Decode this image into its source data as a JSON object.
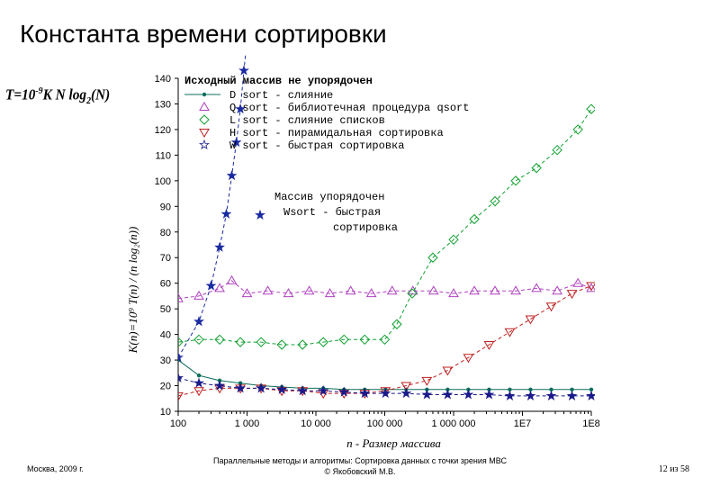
{
  "slide": {
    "title": "Константа времени сортировки",
    "formula_main": "T=10",
    "formula_exp": "-9",
    "formula_mid": "K N log",
    "formula_sub": "2",
    "formula_end": "(N)"
  },
  "footer": {
    "left": "Москва, 2009 г.",
    "center_line1": "Параллельные методы и алгоритмы: Сортировка данных с точки зрения МВС",
    "center_line2": "© Якобовский М.В.",
    "page": "12 из 58"
  },
  "chart_data": {
    "type": "line",
    "ylabel": "K(n)=10⁹ T(n) / (n log₂(n))",
    "xlabel": "n - Размер массива",
    "x_scale": "log",
    "xlim": [
      100,
      100000000
    ],
    "ylim": [
      10,
      140
    ],
    "x_ticks": [
      {
        "value": 100,
        "label": "100"
      },
      {
        "value": 1000,
        "label": "1 000"
      },
      {
        "value": 10000,
        "label": "10 000"
      },
      {
        "value": 100000,
        "label": "100 000"
      },
      {
        "value": 1000000,
        "label": "1 000 000"
      },
      {
        "value": 10000000,
        "label": "1E7"
      },
      {
        "value": 100000000,
        "label": "1E8"
      }
    ],
    "y_ticks": [
      10,
      20,
      30,
      40,
      50,
      60,
      70,
      80,
      90,
      100,
      110,
      120,
      130,
      140
    ],
    "legend_title": "Исходный массив не упорядочен",
    "legend_placement": "top",
    "series": [
      {
        "name": "D sort - слияние",
        "color": "#0a6e5a",
        "marker": "dot",
        "dash": "none",
        "x": [
          100,
          200,
          400,
          800,
          1600,
          3200,
          6400,
          12800,
          25600,
          51200,
          102400,
          204800,
          409600,
          819200,
          1638400,
          3276800,
          6553600,
          13107200,
          26214400,
          52428800,
          100000000
        ],
        "y": [
          30,
          24,
          22,
          21,
          20,
          19.5,
          19,
          19,
          18.5,
          18.5,
          18.5,
          18.5,
          18.5,
          18.5,
          18.5,
          18.5,
          18.5,
          18.5,
          18.5,
          18.5,
          18.5
        ]
      },
      {
        "name": "Q sort - библиотечная процедура qsort",
        "color": "#b040c0",
        "marker": "triangle-up",
        "dash": "dash",
        "x": [
          100,
          200,
          400,
          600,
          1000,
          2000,
          4000,
          8000,
          16000,
          32000,
          64000,
          128000,
          256000,
          512000,
          1000000,
          2000000,
          4000000,
          8000000,
          16000000,
          32000000,
          64000000,
          100000000
        ],
        "y": [
          54,
          55,
          58,
          61,
          56,
          57,
          56,
          57,
          56,
          57,
          56,
          57,
          57,
          57,
          56,
          57,
          57,
          57,
          58,
          57,
          60,
          58
        ]
      },
      {
        "name": "L sort - слияние списков",
        "color": "#10a030",
        "marker": "diamond",
        "dash": "dash",
        "x": [
          100,
          200,
          400,
          800,
          1600,
          3200,
          6400,
          12800,
          25600,
          51200,
          100000,
          150000,
          250000,
          500000,
          1000000,
          2000000,
          4000000,
          8000000,
          16000000,
          32000000,
          64000000,
          100000000
        ],
        "y": [
          37,
          38,
          38,
          37,
          37,
          36,
          36,
          37,
          38,
          38,
          38,
          44,
          56,
          70,
          77,
          85,
          92,
          100,
          105,
          112,
          120,
          128
        ]
      },
      {
        "name": "H sort - пирамидальная сортировка",
        "color": "#c02020",
        "marker": "triangle-down",
        "dash": "dash",
        "x": [
          100,
          200,
          400,
          800,
          1600,
          3200,
          6400,
          12800,
          25600,
          51200,
          102400,
          204800,
          409600,
          819200,
          1638400,
          3276800,
          6553600,
          13107200,
          26214400,
          52428800,
          100000000
        ],
        "y": [
          16,
          18,
          19,
          19,
          19,
          18,
          18,
          17,
          17,
          17,
          18,
          20,
          22,
          26,
          31,
          36,
          41,
          46,
          51,
          56,
          59
        ]
      },
      {
        "name": "W sort - быстрая сортировка",
        "color": "#1a1a8a",
        "marker": "star",
        "dash": "dash",
        "x": [
          100,
          200,
          400,
          800,
          1600,
          3200,
          6400,
          12800,
          25600,
          51200,
          102400,
          204800,
          409600,
          819200,
          1638400,
          3276800,
          6553600,
          13107200,
          26214400,
          52428800,
          100000000
        ],
        "y": [
          23,
          21,
          20,
          19,
          19,
          18.5,
          18,
          18,
          17.5,
          17,
          17,
          17,
          16.5,
          16.5,
          16.5,
          16.5,
          16,
          16,
          16,
          16,
          16
        ]
      },
      {
        "name": "W sort - быстрая сортировка (упорядоченный)",
        "color": "#1a2aa0",
        "marker": "star",
        "dash": "dash",
        "x": [
          100,
          200,
          300,
          400,
          500,
          600,
          700,
          800,
          900,
          1000
        ],
        "y": [
          31,
          45,
          59,
          74,
          87,
          102,
          115,
          128,
          143,
          155
        ]
      }
    ],
    "annotation": {
      "line1": "Массив упорядочен",
      "line2": "Wsort - быстрая",
      "line3": "сортировка"
    }
  }
}
